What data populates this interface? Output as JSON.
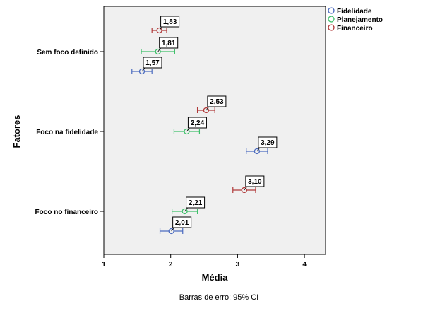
{
  "chart_data": {
    "type": "scatter",
    "subtype": "error-bar-means",
    "xlabel": "Média",
    "ylabel": "Fatores",
    "xlim": [
      1,
      4.3
    ],
    "xticks": [
      1,
      2,
      3,
      4
    ],
    "categories": [
      "Sem foco definido",
      "Foco na fidelidade",
      "Foco no financeiro"
    ],
    "series": [
      {
        "name": "Fidelidade",
        "color": "#4b6bbf",
        "means": [
          1.57,
          3.29,
          2.01
        ],
        "lower": [
          1.42,
          3.13,
          1.84
        ],
        "upper": [
          1.72,
          3.45,
          2.18
        ],
        "labels": [
          "1,57",
          "3,29",
          "2,01"
        ]
      },
      {
        "name": "Planejamento",
        "color": "#3fbf6a",
        "means": [
          1.81,
          2.24,
          2.21
        ],
        "lower": [
          1.56,
          2.05,
          2.02
        ],
        "upper": [
          2.06,
          2.43,
          2.4
        ],
        "labels": [
          "1,81",
          "2,24",
          "2,21"
        ]
      },
      {
        "name": "Financeiro",
        "color": "#b03a3a",
        "means": [
          1.83,
          2.53,
          3.1
        ],
        "lower": [
          1.72,
          2.4,
          2.93
        ],
        "upper": [
          1.94,
          2.66,
          3.27
        ],
        "labels": [
          "1,83",
          "2,53",
          "3,10"
        ]
      }
    ],
    "grid": false,
    "legend_position": "top-right"
  },
  "footnote": "Barras de erro: 95% CI"
}
